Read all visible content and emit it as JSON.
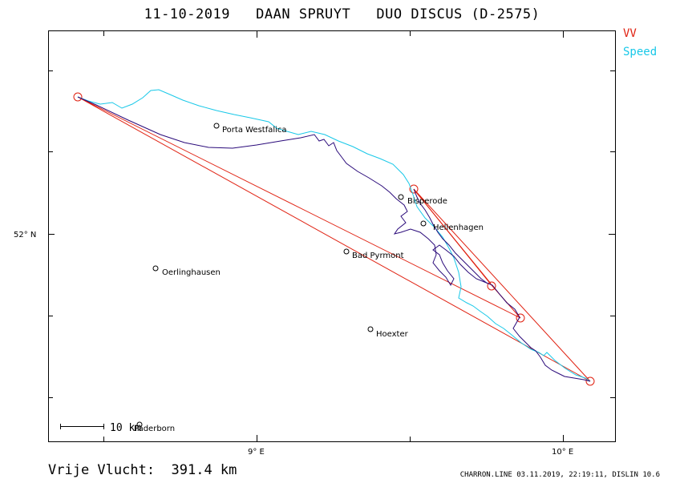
{
  "title": "11-10-2019   DAAN SPRUYT   DUO DISCUS (D-2575)",
  "legend": {
    "vv_label": "VV",
    "speed_label": "Speed",
    "vv_color": "#e02010",
    "speed_color": "#18c8e8",
    "track_color": "#2a0a7a"
  },
  "axes": {
    "lat_label": "52° N",
    "lon_labels": [
      "9° E",
      "10° E"
    ]
  },
  "places": [
    {
      "name": "Porta Westfalica"
    },
    {
      "name": "Bisperode"
    },
    {
      "name": "Hellenhagen"
    },
    {
      "name": "Bad Pyrmont"
    },
    {
      "name": "Oerlinghausen"
    },
    {
      "name": "Hoexter"
    },
    {
      "name": "Paderborn"
    }
  ],
  "scale": {
    "label": "10 km"
  },
  "footer": {
    "distance_text": "Vrije Vlucht:  391.4 km",
    "credit_text": "CHARRON.LINE 03.11.2019, 22:19:11, DISLIN 10.6"
  }
}
